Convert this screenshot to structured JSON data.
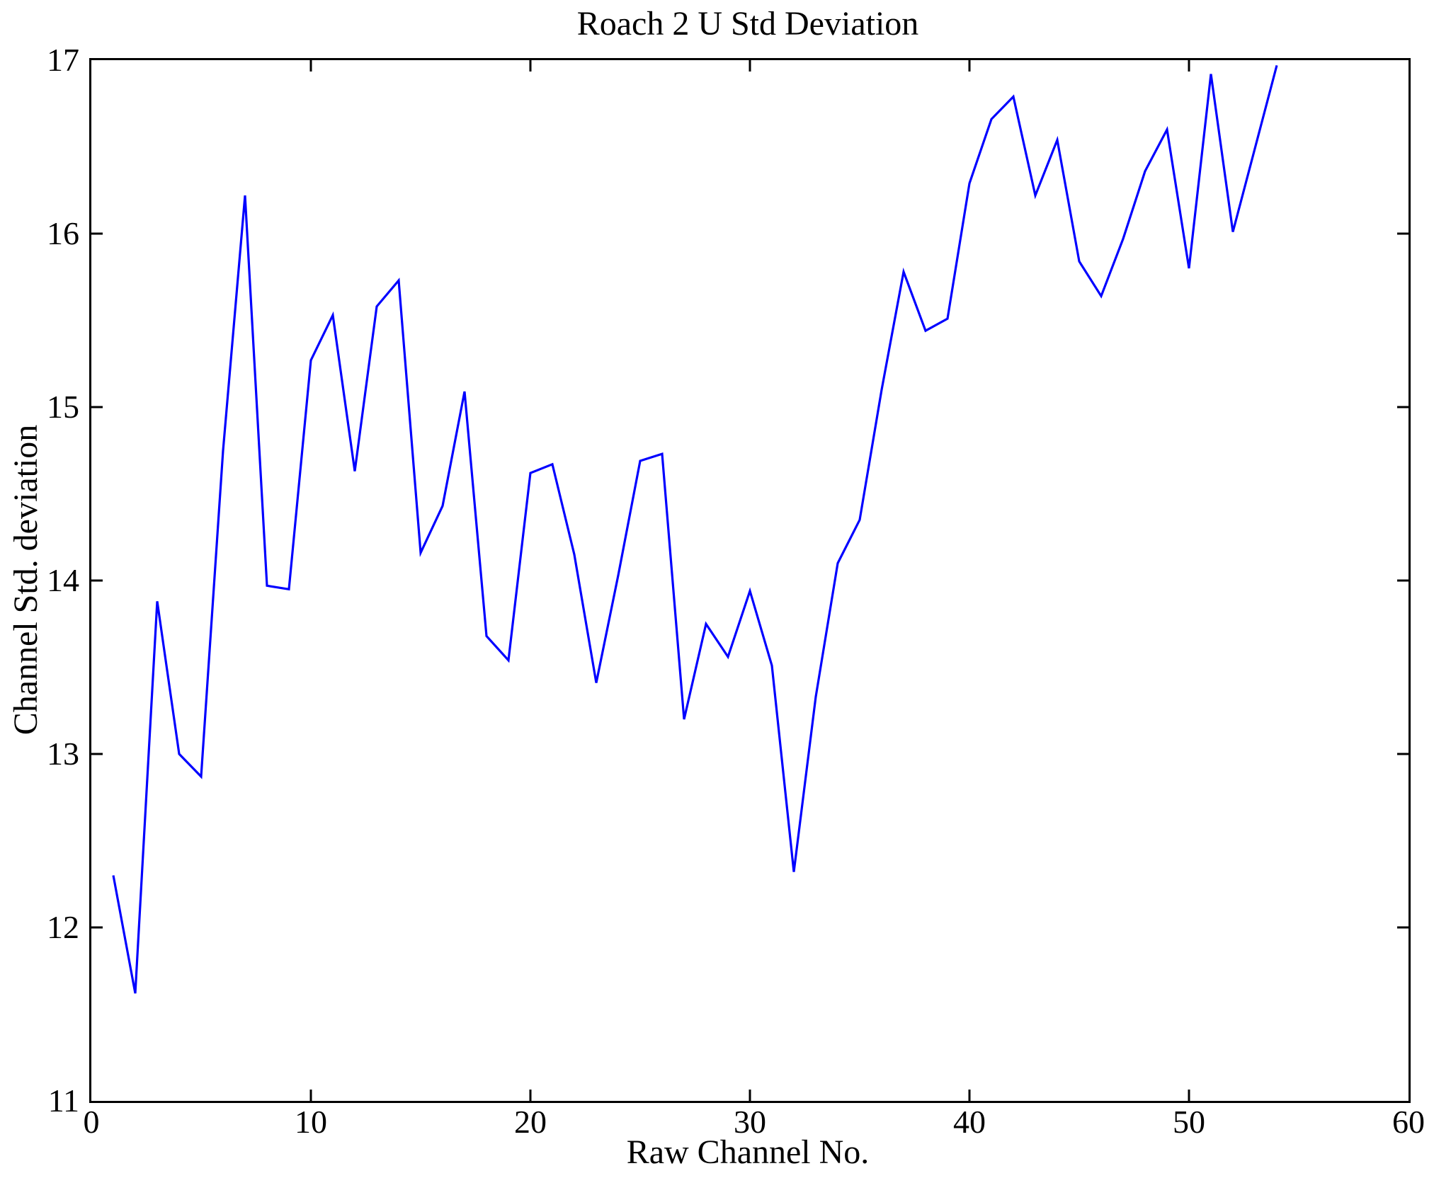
{
  "chart_data": {
    "type": "line",
    "title": "Roach 2 U Std Deviation",
    "xlabel": "Raw Channel No.",
    "ylabel": "Channel Std. deviation",
    "xlim": [
      0,
      60
    ],
    "ylim": [
      11,
      17
    ],
    "x_ticks": [
      0,
      10,
      20,
      30,
      40,
      50,
      60
    ],
    "y_ticks": [
      11,
      12,
      13,
      14,
      15,
      16,
      17
    ],
    "grid": false,
    "legend": null,
    "line_color": "#0000ff",
    "axis_color": "#000000",
    "x": [
      1,
      2,
      3,
      4,
      5,
      6,
      7,
      8,
      9,
      10,
      11,
      12,
      13,
      14,
      15,
      16,
      17,
      18,
      19,
      20,
      21,
      22,
      23,
      24,
      25,
      26,
      27,
      28,
      29,
      30,
      31,
      32,
      33,
      34,
      35,
      36,
      37,
      38,
      39,
      40,
      41,
      42,
      43,
      44,
      45,
      46,
      47,
      48,
      49,
      50,
      51,
      52,
      53,
      54
    ],
    "values": [
      12.3,
      11.62,
      13.88,
      13.0,
      12.87,
      14.75,
      16.22,
      13.97,
      13.95,
      15.27,
      15.53,
      14.63,
      15.58,
      15.73,
      14.16,
      14.43,
      15.09,
      13.68,
      13.54,
      14.62,
      14.67,
      14.15,
      13.41,
      14.03,
      14.69,
      14.73,
      13.2,
      13.75,
      13.56,
      13.94,
      13.51,
      12.32,
      13.33,
      14.1,
      14.35,
      15.1,
      15.78,
      15.44,
      15.51,
      16.29,
      16.66,
      16.79,
      16.22,
      16.54,
      15.84,
      15.64,
      15.97,
      16.36,
      16.6,
      15.8,
      16.92,
      16.01,
      16.49,
      16.97
    ]
  }
}
